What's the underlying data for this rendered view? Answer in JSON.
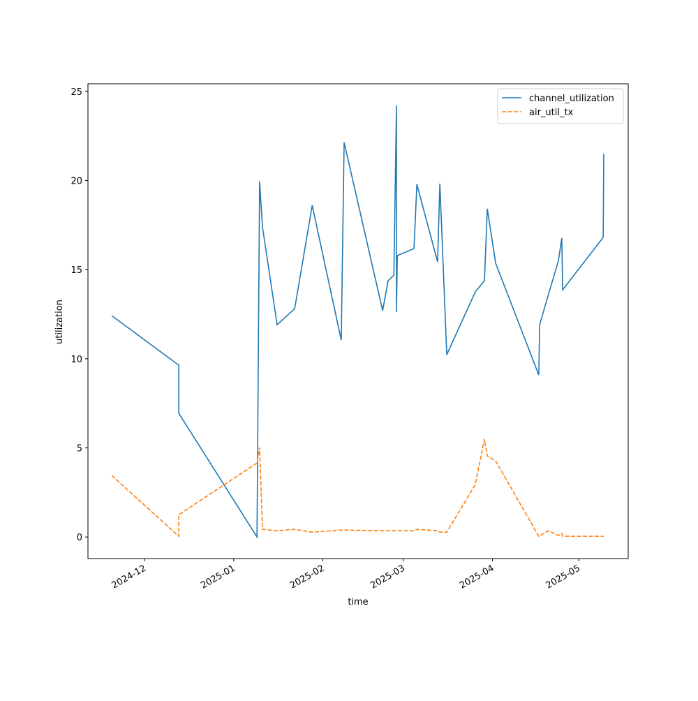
{
  "chart_data": {
    "type": "line",
    "xlabel": "time",
    "ylabel": "utilization",
    "x": [
      20046.6,
      20069.9,
      20069.9,
      20097.1,
      20098.0,
      20099.0,
      20104.1,
      20110.2,
      20116.3,
      20126.4,
      20127.4,
      20140.8,
      20142.7,
      20144.7,
      20145.6,
      20145.6,
      20145.9,
      20151.7,
      20152.7,
      20159.9,
      20160.7,
      20163.1,
      20173.0,
      20176.2,
      20177.2,
      20180.1,
      20195.1,
      20195.4,
      20198.5,
      20201.9,
      20203.1,
      20203.4,
      20217.5,
      20217.7
    ],
    "series": [
      {
        "name": "channel_utilization",
        "color": "#1f77b4",
        "dash": "solid",
        "values": [
          12.42,
          9.64,
          6.94,
          0.0,
          19.95,
          17.4,
          11.91,
          12.81,
          18.61,
          11.05,
          22.14,
          12.7,
          14.38,
          14.69,
          24.22,
          12.62,
          15.79,
          16.18,
          19.79,
          15.44,
          19.83,
          10.23,
          13.75,
          14.38,
          18.42,
          15.36,
          9.09,
          11.91,
          13.63,
          15.48,
          16.77,
          13.87,
          16.81,
          21.51
        ]
      },
      {
        "name": "air_util_tx",
        "color": "#ff7f0e",
        "dash": "dashed",
        "values": [
          3.45,
          0.04,
          1.25,
          4.15,
          5.02,
          0.43,
          0.35,
          0.43,
          0.27,
          0.39,
          0.39,
          0.35,
          0.35,
          0.35,
          0.35,
          0.35,
          0.35,
          0.35,
          0.43,
          0.35,
          0.27,
          0.27,
          2.94,
          5.49,
          4.55,
          4.27,
          0.04,
          0.08,
          0.35,
          0.08,
          0.2,
          0.04,
          0.04,
          0.04
        ]
      }
    ],
    "xlim": [
      20038.3,
      20226.2
    ],
    "xticks": [
      {
        "value": 20058,
        "label": "2024-12"
      },
      {
        "value": 20089,
        "label": "2025-01"
      },
      {
        "value": 20120,
        "label": "2025-02"
      },
      {
        "value": 20148,
        "label": "2025-03"
      },
      {
        "value": 20179,
        "label": "2025-04"
      },
      {
        "value": 20209,
        "label": "2025-05"
      }
    ],
    "ylim": [
      -1.21,
      25.43
    ],
    "yticks": [
      0,
      5,
      10,
      15,
      20,
      25
    ],
    "grid": false,
    "legend": "upper-right"
  }
}
